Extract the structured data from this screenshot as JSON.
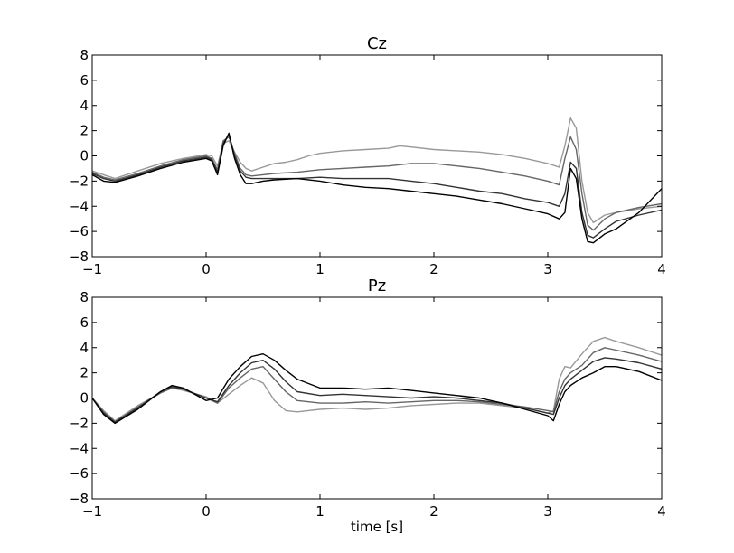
{
  "chart_data": [
    {
      "type": "line",
      "title": "Cz",
      "xlabel": "",
      "ylabel": "",
      "xlim": [
        -1,
        4
      ],
      "ylim": [
        -8,
        8
      ],
      "xticks": [
        -1,
        0,
        1,
        2,
        3,
        4
      ],
      "yticks": [
        -8,
        -6,
        -4,
        -2,
        0,
        2,
        4,
        6,
        8
      ],
      "x_tick_labels": [
        "−1",
        "0",
        "1",
        "2",
        "3",
        "4"
      ],
      "y_tick_labels": [
        "−8",
        "−6",
        "−4",
        "−2",
        "0",
        "2",
        "4",
        "6",
        "8"
      ],
      "grid": false,
      "series": [
        {
          "color": "#999999",
          "x": [
            -1,
            -0.9,
            -0.8,
            -0.6,
            -0.4,
            -0.2,
            0,
            0.05,
            0.1,
            0.15,
            0.2,
            0.25,
            0.3,
            0.35,
            0.4,
            0.5,
            0.6,
            0.7,
            0.8,
            0.9,
            1.0,
            1.2,
            1.4,
            1.6,
            1.7,
            1.8,
            2.0,
            2.2,
            2.4,
            2.6,
            2.8,
            3.0,
            3.1,
            3.15,
            3.2,
            3.25,
            3.3,
            3.35,
            3.4,
            3.5,
            3.6,
            3.8,
            4.0
          ],
          "y": [
            -1.2,
            -1.5,
            -1.8,
            -1.2,
            -0.6,
            -0.2,
            0.1,
            0.0,
            -0.8,
            1.0,
            1.2,
            0.3,
            -0.5,
            -1.0,
            -1.2,
            -0.9,
            -0.6,
            -0.5,
            -0.3,
            0.0,
            0.2,
            0.4,
            0.5,
            0.6,
            0.8,
            0.7,
            0.5,
            0.4,
            0.3,
            0.1,
            -0.2,
            -0.6,
            -0.9,
            0.8,
            3.0,
            2.2,
            -2.0,
            -4.5,
            -5.3,
            -4.7,
            -4.5,
            -4.2,
            -4.0
          ]
        },
        {
          "color": "#666666",
          "x": [
            -1,
            -0.9,
            -0.8,
            -0.6,
            -0.4,
            -0.2,
            0,
            0.05,
            0.1,
            0.15,
            0.2,
            0.25,
            0.3,
            0.35,
            0.4,
            0.5,
            0.6,
            0.8,
            1.0,
            1.2,
            1.4,
            1.6,
            1.8,
            2.0,
            2.2,
            2.4,
            2.6,
            2.8,
            3.0,
            3.1,
            3.15,
            3.2,
            3.25,
            3.3,
            3.35,
            3.4,
            3.5,
            3.6,
            3.8,
            4.0
          ],
          "y": [
            -1.3,
            -1.7,
            -1.9,
            -1.4,
            -0.8,
            -0.3,
            0.0,
            -0.2,
            -1.1,
            1.2,
            1.5,
            0.2,
            -1.0,
            -1.5,
            -1.6,
            -1.5,
            -1.4,
            -1.3,
            -1.1,
            -1.0,
            -0.9,
            -0.8,
            -0.6,
            -0.6,
            -0.8,
            -1.0,
            -1.3,
            -1.6,
            -2.0,
            -2.3,
            -0.2,
            1.5,
            0.5,
            -3.0,
            -5.5,
            -5.9,
            -5.0,
            -4.5,
            -4.1,
            -3.8
          ]
        },
        {
          "color": "#333333",
          "x": [
            -1,
            -0.9,
            -0.8,
            -0.6,
            -0.4,
            -0.2,
            0,
            0.05,
            0.1,
            0.15,
            0.2,
            0.25,
            0.3,
            0.35,
            0.4,
            0.5,
            0.6,
            0.8,
            1.0,
            1.2,
            1.4,
            1.6,
            1.8,
            2.0,
            2.2,
            2.4,
            2.6,
            2.8,
            3.0,
            3.1,
            3.15,
            3.2,
            3.25,
            3.3,
            3.35,
            3.4,
            3.5,
            3.6,
            3.8,
            4.0
          ],
          "y": [
            -1.4,
            -1.8,
            -2.0,
            -1.5,
            -0.9,
            -0.4,
            -0.1,
            -0.3,
            -1.3,
            1.0,
            1.7,
            0.0,
            -1.2,
            -1.7,
            -1.8,
            -1.8,
            -1.8,
            -1.8,
            -1.7,
            -1.8,
            -1.8,
            -1.8,
            -2.0,
            -2.2,
            -2.5,
            -2.8,
            -3.0,
            -3.4,
            -3.7,
            -4.0,
            -3.0,
            -0.5,
            -1.0,
            -4.5,
            -6.3,
            -6.5,
            -5.8,
            -5.2,
            -4.7,
            -4.3
          ]
        },
        {
          "color": "#000000",
          "x": [
            -1,
            -0.9,
            -0.8,
            -0.6,
            -0.4,
            -0.2,
            0,
            0.05,
            0.1,
            0.15,
            0.2,
            0.25,
            0.3,
            0.35,
            0.4,
            0.5,
            0.6,
            0.8,
            1.0,
            1.2,
            1.4,
            1.6,
            1.8,
            2.0,
            2.2,
            2.4,
            2.6,
            2.8,
            3.0,
            3.1,
            3.15,
            3.2,
            3.25,
            3.3,
            3.35,
            3.4,
            3.5,
            3.6,
            3.8,
            4.0
          ],
          "y": [
            -1.5,
            -2.0,
            -2.1,
            -1.6,
            -1.0,
            -0.5,
            -0.2,
            -0.4,
            -1.5,
            0.8,
            1.8,
            -0.2,
            -1.5,
            -2.2,
            -2.2,
            -2.0,
            -1.9,
            -1.8,
            -2.0,
            -2.3,
            -2.5,
            -2.6,
            -2.8,
            -3.0,
            -3.2,
            -3.5,
            -3.8,
            -4.2,
            -4.6,
            -5.0,
            -4.5,
            -1.0,
            -1.8,
            -5.0,
            -6.8,
            -6.9,
            -6.2,
            -5.8,
            -4.5,
            -2.6
          ]
        }
      ]
    },
    {
      "type": "line",
      "title": "Pz",
      "xlabel": "time [s]",
      "ylabel": "",
      "xlim": [
        -1,
        4
      ],
      "ylim": [
        -8,
        8
      ],
      "xticks": [
        -1,
        0,
        1,
        2,
        3,
        4
      ],
      "yticks": [
        -8,
        -6,
        -4,
        -2,
        0,
        2,
        4,
        6,
        8
      ],
      "x_tick_labels": [
        "−1",
        "0",
        "1",
        "2",
        "3",
        "4"
      ],
      "y_tick_labels": [
        "−8",
        "−6",
        "−4",
        "−2",
        "0",
        "2",
        "4",
        "6",
        "8"
      ],
      "grid": false,
      "series": [
        {
          "color": "#999999",
          "x": [
            -1,
            -0.9,
            -0.8,
            -0.6,
            -0.4,
            -0.3,
            -0.2,
            0,
            0.1,
            0.2,
            0.3,
            0.4,
            0.5,
            0.6,
            0.7,
            0.8,
            1.0,
            1.2,
            1.4,
            1.6,
            1.8,
            2.0,
            2.2,
            2.4,
            2.6,
            2.8,
            3.0,
            3.05,
            3.1,
            3.15,
            3.2,
            3.3,
            3.4,
            3.5,
            3.6,
            3.8,
            4.0
          ],
          "y": [
            0.0,
            -1.0,
            -1.8,
            -0.6,
            0.4,
            0.8,
            0.6,
            0.1,
            -0.4,
            0.3,
            1.0,
            1.6,
            1.2,
            -0.2,
            -1.0,
            -1.1,
            -0.9,
            -0.8,
            -0.9,
            -0.8,
            -0.6,
            -0.5,
            -0.4,
            -0.4,
            -0.6,
            -0.8,
            -1.2,
            -1.0,
            1.5,
            2.5,
            2.4,
            3.5,
            4.5,
            4.8,
            4.5,
            4.0,
            3.4
          ]
        },
        {
          "color": "#666666",
          "x": [
            -1,
            -0.9,
            -0.8,
            -0.6,
            -0.4,
            -0.3,
            -0.2,
            0,
            0.1,
            0.2,
            0.3,
            0.4,
            0.5,
            0.6,
            0.7,
            0.8,
            1.0,
            1.2,
            1.4,
            1.6,
            1.8,
            2.0,
            2.2,
            2.4,
            2.6,
            2.8,
            3.0,
            3.05,
            3.1,
            3.15,
            3.2,
            3.3,
            3.4,
            3.5,
            3.6,
            3.8,
            4.0
          ],
          "y": [
            0.0,
            -1.1,
            -1.9,
            -0.7,
            0.4,
            0.8,
            0.7,
            0.0,
            -0.4,
            0.8,
            1.6,
            2.3,
            2.5,
            1.5,
            0.5,
            -0.2,
            -0.4,
            -0.4,
            -0.3,
            -0.4,
            -0.3,
            -0.2,
            -0.2,
            -0.3,
            -0.5,
            -0.7,
            -1.0,
            -1.1,
            0.5,
            1.5,
            2.0,
            2.6,
            3.6,
            4.0,
            3.8,
            3.4,
            2.9
          ]
        },
        {
          "color": "#333333",
          "x": [
            -1,
            -0.9,
            -0.8,
            -0.6,
            -0.4,
            -0.3,
            -0.2,
            0,
            0.1,
            0.2,
            0.3,
            0.4,
            0.5,
            0.6,
            0.7,
            0.8,
            1.0,
            1.2,
            1.4,
            1.6,
            1.8,
            2.0,
            2.2,
            2.4,
            2.6,
            2.8,
            3.0,
            3.05,
            3.1,
            3.15,
            3.2,
            3.3,
            3.4,
            3.5,
            3.6,
            3.8,
            4.0
          ],
          "y": [
            0.0,
            -1.2,
            -1.9,
            -0.8,
            0.5,
            0.9,
            0.7,
            0.0,
            -0.3,
            1.0,
            2.0,
            2.8,
            3.0,
            2.3,
            1.3,
            0.5,
            0.2,
            0.3,
            0.2,
            0.1,
            0.0,
            0.1,
            0.0,
            -0.2,
            -0.4,
            -0.8,
            -1.2,
            -1.3,
            0.0,
            1.0,
            1.5,
            2.2,
            2.9,
            3.2,
            3.1,
            2.8,
            2.3
          ]
        },
        {
          "color": "#000000",
          "x": [
            -1,
            -0.9,
            -0.8,
            -0.6,
            -0.4,
            -0.3,
            -0.2,
            0,
            0.1,
            0.2,
            0.3,
            0.4,
            0.5,
            0.6,
            0.7,
            0.8,
            1.0,
            1.2,
            1.4,
            1.6,
            1.8,
            2.0,
            2.2,
            2.4,
            2.6,
            2.8,
            3.0,
            3.05,
            3.1,
            3.15,
            3.2,
            3.3,
            3.4,
            3.5,
            3.6,
            3.8,
            4.0
          ],
          "y": [
            0.0,
            -1.3,
            -2.0,
            -0.9,
            0.5,
            1.0,
            0.8,
            -0.2,
            0.0,
            1.5,
            2.5,
            3.3,
            3.5,
            3.0,
            2.2,
            1.5,
            0.8,
            0.8,
            0.7,
            0.8,
            0.6,
            0.4,
            0.2,
            0.0,
            -0.4,
            -0.9,
            -1.4,
            -1.8,
            -0.5,
            0.5,
            1.0,
            1.6,
            2.0,
            2.5,
            2.5,
            2.1,
            1.4
          ]
        }
      ]
    }
  ]
}
